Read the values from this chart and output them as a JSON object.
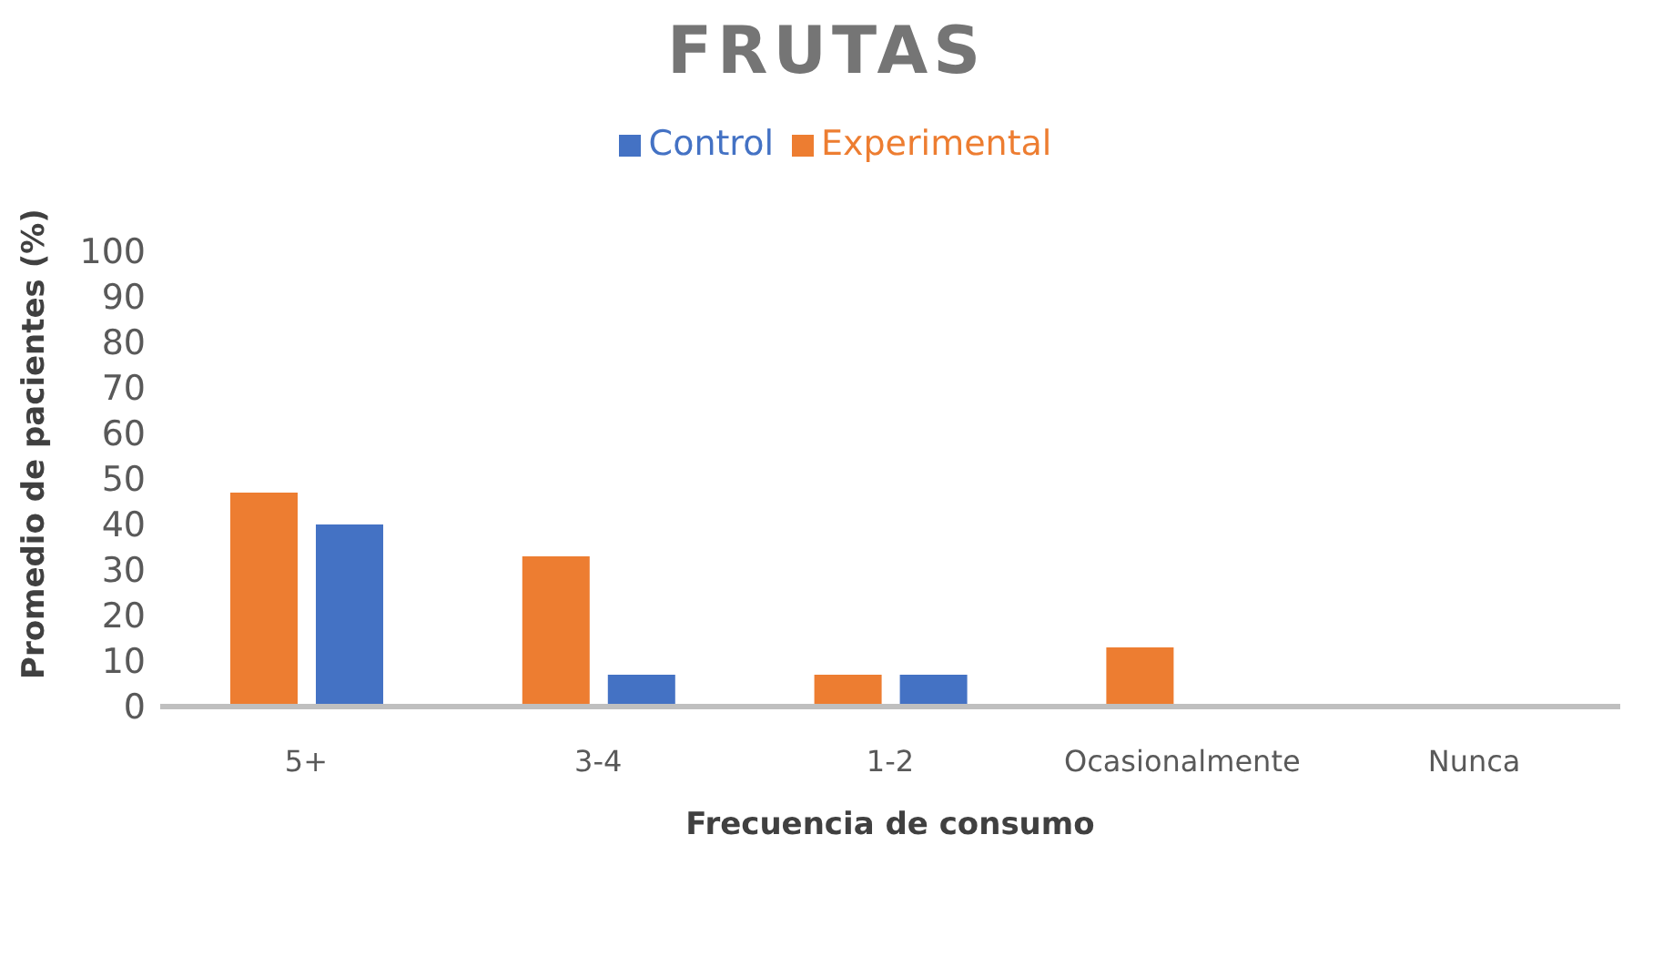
{
  "chart_data": {
    "type": "bar",
    "title": "FRUTAS",
    "xlabel": "Frecuencia de consumo",
    "ylabel": "Promedio de pacientes (%)",
    "categories": [
      "5+",
      "3-4",
      "1-2",
      "Ocasionalmente",
      "Nunca"
    ],
    "series": [
      {
        "name": "Experimental",
        "color": "#ed7d31",
        "values": [
          47,
          33,
          7,
          13,
          0
        ]
      },
      {
        "name": "Control",
        "color": "#4472c4",
        "values": [
          40,
          7,
          7,
          0,
          0
        ]
      }
    ],
    "ylim": [
      0,
      100
    ],
    "yticks": [
      0,
      10,
      20,
      30,
      40,
      50,
      60,
      70,
      80,
      90,
      100
    ],
    "grid": false,
    "legend": "top"
  }
}
